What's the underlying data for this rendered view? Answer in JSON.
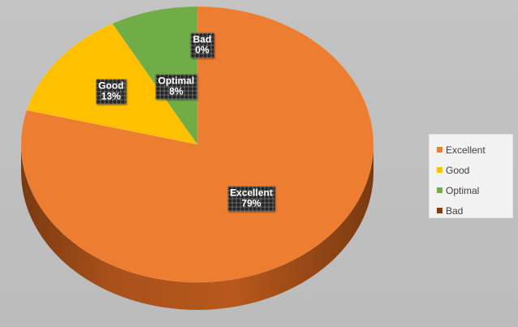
{
  "chart_data": {
    "type": "pie",
    "style": "3d",
    "categories": [
      "Excellent",
      "Good",
      "Optimal",
      "Bad"
    ],
    "values": [
      79,
      13,
      8,
      0
    ],
    "data_labels": [
      {
        "category": "Excellent",
        "value": "79%"
      },
      {
        "category": "Good",
        "value": "13%"
      },
      {
        "category": "Optimal",
        "value": "8%"
      },
      {
        "category": "Bad",
        "value": "0%"
      }
    ],
    "colors": [
      "#ed7d31",
      "#ffc000",
      "#70ad47",
      "#843c0c"
    ],
    "legend": {
      "placement": "right",
      "entries": [
        "Excellent",
        "Good",
        "Optimal",
        "Bad"
      ]
    }
  }
}
